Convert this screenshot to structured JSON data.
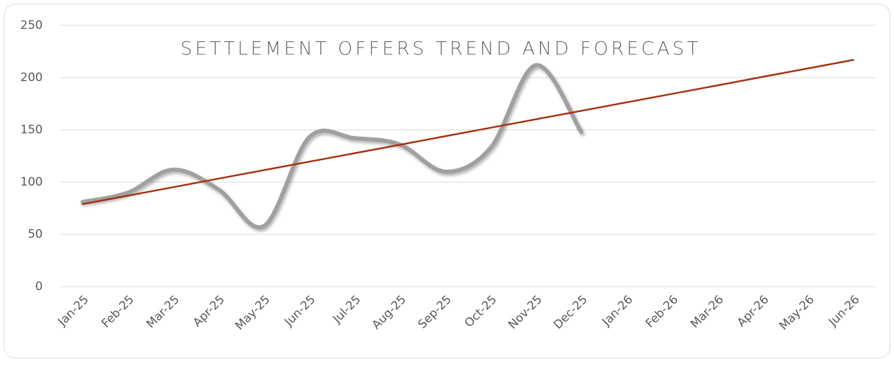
{
  "chart_data": {
    "type": "line",
    "title": "SETTLEMENT OFFERS TREND AND FORECAST",
    "categories": [
      "Jan-25",
      "Feb-25",
      "Mar-25",
      "Apr-25",
      "May-25",
      "Jun-25",
      "Jul-25",
      "Aug-25",
      "Sep-25",
      "Oct-25",
      "Nov-25",
      "Dec-25",
      "Jan-26",
      "Feb-26",
      "Mar-26",
      "Apr-26",
      "May-26",
      "Jun-26"
    ],
    "series": [
      {
        "color": "#a0a0a0",
        "smooth": true,
        "values": [
          81,
          90,
          112,
          93,
          58,
          143,
          142,
          136,
          110,
          133,
          212,
          148,
          null,
          null,
          null,
          null,
          null,
          null
        ]
      },
      {
        "color": "#a5300f",
        "smooth": false,
        "values": [
          79,
          87.1,
          95.2,
          103.4,
          111.5,
          119.6,
          127.7,
          135.8,
          144,
          152.1,
          160.2,
          168.3,
          176.4,
          184.5,
          192.6,
          200.8,
          208.9,
          217
        ]
      }
    ],
    "ylim": [
      0,
      250
    ],
    "yticks": [
      0,
      50,
      100,
      150,
      200,
      250
    ],
    "grid": true
  }
}
